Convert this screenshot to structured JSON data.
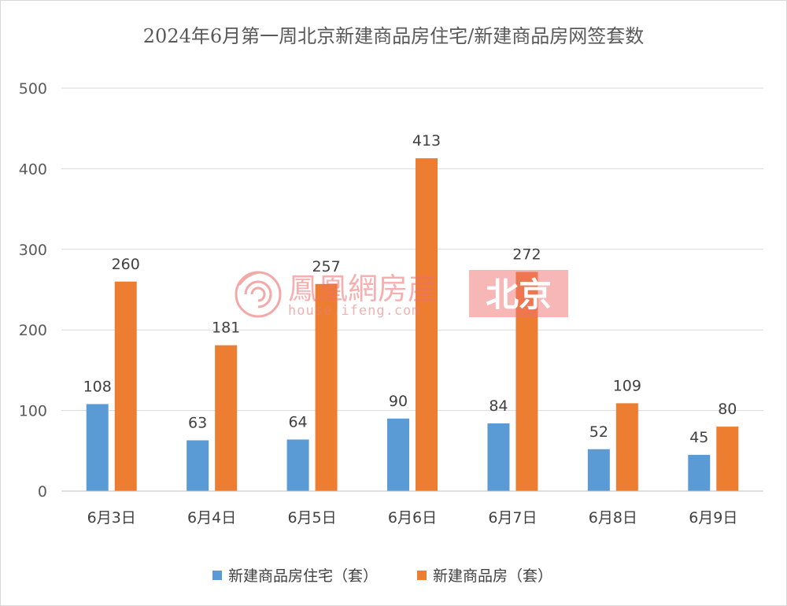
{
  "chart_data": {
    "type": "bar",
    "title": "2024年6月第一周北京新建商品房住宅/新建商品房网签套数",
    "categories": [
      "6月3日",
      "6月4日",
      "6月5日",
      "6月6日",
      "6月7日",
      "6月8日",
      "6月9日"
    ],
    "series": [
      {
        "name": "新建商品房住宅（套）",
        "color": "#5b9bd5",
        "values": [
          108,
          63,
          64,
          90,
          84,
          52,
          45
        ]
      },
      {
        "name": "新建商品房（套）",
        "color": "#ed7d31",
        "values": [
          260,
          181,
          257,
          413,
          272,
          109,
          80
        ]
      }
    ],
    "ylim": [
      0,
      500
    ],
    "yticks": [
      0,
      100,
      200,
      300,
      400,
      500
    ],
    "grid": true,
    "legend_position": "bottom",
    "data_labels": true
  },
  "watermark": {
    "brand": "鳳凰網房産",
    "url": "house.ifeng.com",
    "city": "北京",
    "logo_icon": "phoenix-swirl-logo",
    "color": "#ef6f6f"
  }
}
